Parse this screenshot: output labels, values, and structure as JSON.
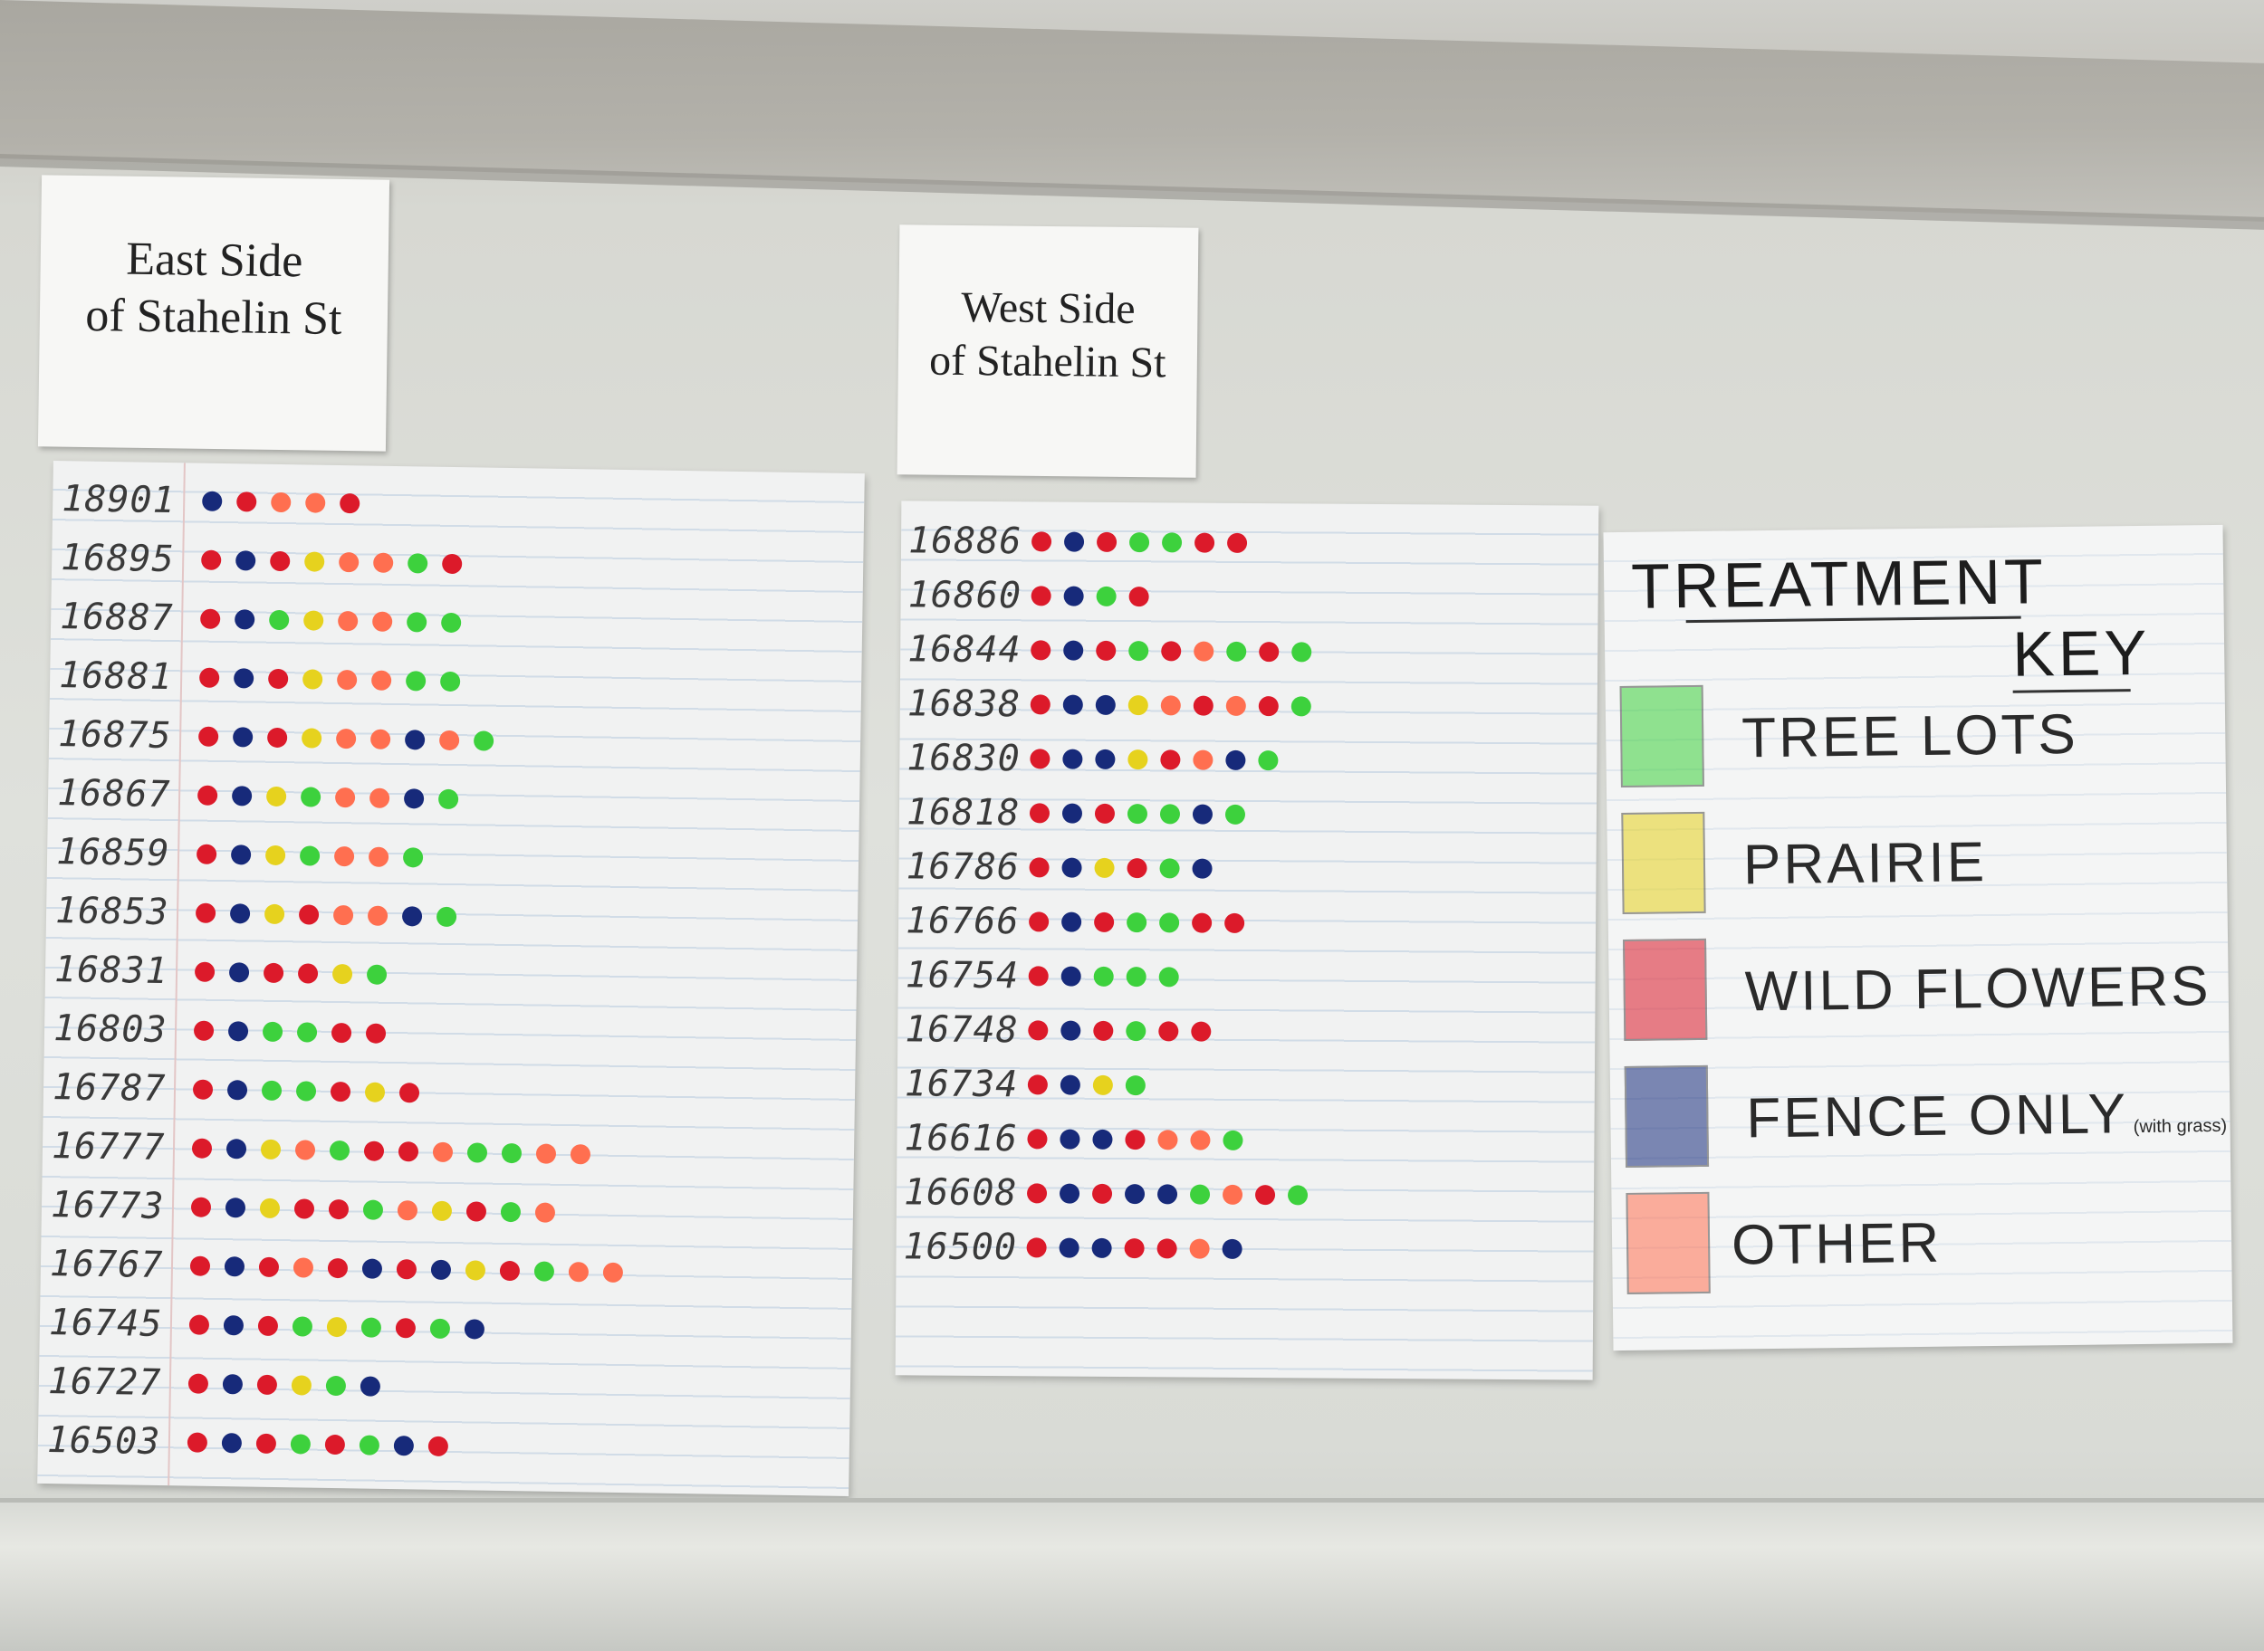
{
  "colors": {
    "tree_lots": "#3dd13d",
    "prairie": "#e6d21e",
    "wild_flowers": "#dc1a2a",
    "fence_only": "#172a7a",
    "other": "#ff6f50"
  },
  "east": {
    "title_line1": "East Side",
    "title_line2": "of Stahelin St",
    "rows": [
      {
        "address": "18901",
        "dots": [
          "fence_only",
          "wild_flowers",
          "other",
          "other",
          "wild_flowers"
        ]
      },
      {
        "address": "16895",
        "dots": [
          "wild_flowers",
          "fence_only",
          "wild_flowers",
          "prairie",
          "other",
          "other",
          "tree_lots",
          "wild_flowers"
        ]
      },
      {
        "address": "16887",
        "dots": [
          "wild_flowers",
          "fence_only",
          "tree_lots",
          "prairie",
          "other",
          "other",
          "tree_lots",
          "tree_lots"
        ]
      },
      {
        "address": "16881",
        "dots": [
          "wild_flowers",
          "fence_only",
          "wild_flowers",
          "prairie",
          "other",
          "other",
          "tree_lots",
          "tree_lots"
        ]
      },
      {
        "address": "16875",
        "dots": [
          "wild_flowers",
          "fence_only",
          "wild_flowers",
          "prairie",
          "other",
          "other",
          "fence_only",
          "other",
          "tree_lots"
        ]
      },
      {
        "address": "16867",
        "dots": [
          "wild_flowers",
          "fence_only",
          "prairie",
          "tree_lots",
          "other",
          "other",
          "fence_only",
          "tree_lots"
        ]
      },
      {
        "address": "16859",
        "dots": [
          "wild_flowers",
          "fence_only",
          "prairie",
          "tree_lots",
          "other",
          "other",
          "tree_lots"
        ]
      },
      {
        "address": "16853",
        "dots": [
          "wild_flowers",
          "fence_only",
          "prairie",
          "wild_flowers",
          "other",
          "other",
          "fence_only",
          "tree_lots"
        ]
      },
      {
        "address": "16831",
        "dots": [
          "wild_flowers",
          "fence_only",
          "wild_flowers",
          "wild_flowers",
          "prairie",
          "tree_lots"
        ]
      },
      {
        "address": "16803",
        "dots": [
          "wild_flowers",
          "fence_only",
          "tree_lots",
          "tree_lots",
          "wild_flowers",
          "wild_flowers"
        ]
      },
      {
        "address": "16787",
        "dots": [
          "wild_flowers",
          "fence_only",
          "tree_lots",
          "tree_lots",
          "wild_flowers",
          "prairie",
          "wild_flowers"
        ]
      },
      {
        "address": "16777",
        "dots": [
          "wild_flowers",
          "fence_only",
          "prairie",
          "other",
          "tree_lots",
          "wild_flowers",
          "wild_flowers",
          "other",
          "tree_lots",
          "tree_lots",
          "other",
          "other"
        ]
      },
      {
        "address": "16773",
        "dots": [
          "wild_flowers",
          "fence_only",
          "prairie",
          "wild_flowers",
          "wild_flowers",
          "tree_lots",
          "other",
          "prairie",
          "wild_flowers",
          "tree_lots",
          "other"
        ]
      },
      {
        "address": "16767",
        "dots": [
          "wild_flowers",
          "fence_only",
          "wild_flowers",
          "other",
          "wild_flowers",
          "fence_only",
          "wild_flowers",
          "fence_only",
          "prairie",
          "wild_flowers",
          "tree_lots",
          "other",
          "other"
        ]
      },
      {
        "address": "16745",
        "dots": [
          "wild_flowers",
          "fence_only",
          "wild_flowers",
          "tree_lots",
          "prairie",
          "tree_lots",
          "wild_flowers",
          "tree_lots",
          "fence_only"
        ]
      },
      {
        "address": "16727",
        "dots": [
          "wild_flowers",
          "fence_only",
          "wild_flowers",
          "prairie",
          "tree_lots",
          "fence_only"
        ]
      },
      {
        "address": "16503",
        "dots": [
          "wild_flowers",
          "fence_only",
          "wild_flowers",
          "tree_lots",
          "wild_flowers",
          "tree_lots",
          "fence_only",
          "wild_flowers"
        ]
      }
    ]
  },
  "west": {
    "title_line1": "West Side",
    "title_line2": "of Stahelin St",
    "rows": [
      {
        "address": "16886",
        "dots": [
          "wild_flowers",
          "fence_only",
          "wild_flowers",
          "tree_lots",
          "tree_lots",
          "wild_flowers",
          "wild_flowers"
        ]
      },
      {
        "address": "16860",
        "dots": [
          "wild_flowers",
          "fence_only",
          "tree_lots",
          "wild_flowers"
        ]
      },
      {
        "address": "16844",
        "dots": [
          "wild_flowers",
          "fence_only",
          "wild_flowers",
          "tree_lots",
          "wild_flowers",
          "other",
          "tree_lots",
          "wild_flowers",
          "tree_lots"
        ]
      },
      {
        "address": "16838",
        "dots": [
          "wild_flowers",
          "fence_only",
          "fence_only",
          "prairie",
          "other",
          "wild_flowers",
          "other",
          "wild_flowers",
          "tree_lots"
        ]
      },
      {
        "address": "16830",
        "dots": [
          "wild_flowers",
          "fence_only",
          "fence_only",
          "prairie",
          "wild_flowers",
          "other",
          "fence_only",
          "tree_lots"
        ]
      },
      {
        "address": "16818",
        "dots": [
          "wild_flowers",
          "fence_only",
          "wild_flowers",
          "tree_lots",
          "tree_lots",
          "fence_only",
          "tree_lots"
        ]
      },
      {
        "address": "16786",
        "dots": [
          "wild_flowers",
          "fence_only",
          "prairie",
          "wild_flowers",
          "tree_lots",
          "fence_only"
        ]
      },
      {
        "address": "16766",
        "dots": [
          "wild_flowers",
          "fence_only",
          "wild_flowers",
          "tree_lots",
          "tree_lots",
          "wild_flowers",
          "wild_flowers"
        ]
      },
      {
        "address": "16754",
        "dots": [
          "wild_flowers",
          "fence_only",
          "tree_lots",
          "tree_lots",
          "tree_lots"
        ]
      },
      {
        "address": "16748",
        "dots": [
          "wild_flowers",
          "fence_only",
          "wild_flowers",
          "tree_lots",
          "wild_flowers",
          "wild_flowers"
        ]
      },
      {
        "address": "16734",
        "dots": [
          "wild_flowers",
          "fence_only",
          "prairie",
          "tree_lots"
        ]
      },
      {
        "address": "16616",
        "dots": [
          "wild_flowers",
          "fence_only",
          "fence_only",
          "wild_flowers",
          "other",
          "other",
          "tree_lots"
        ]
      },
      {
        "address": "16608",
        "dots": [
          "wild_flowers",
          "fence_only",
          "wild_flowers",
          "fence_only",
          "fence_only",
          "tree_lots",
          "other",
          "wild_flowers",
          "tree_lots"
        ]
      },
      {
        "address": "16500",
        "dots": [
          "wild_flowers",
          "fence_only",
          "fence_only",
          "wild_flowers",
          "wild_flowers",
          "other",
          "fence_only"
        ]
      }
    ]
  },
  "key": {
    "title_line1": "TREATMENT",
    "title_line2": "KEY",
    "items": [
      {
        "id": "tree_lots",
        "label": "TREE LOTS",
        "note": ""
      },
      {
        "id": "prairie",
        "label": "PRAIRIE",
        "note": ""
      },
      {
        "id": "wild_flowers",
        "label": "WILD FLOWERS",
        "note": ""
      },
      {
        "id": "fence_only",
        "label": "FENCE ONLY",
        "note": "(with grass)"
      },
      {
        "id": "other",
        "label": "OTHER",
        "note": ""
      }
    ]
  }
}
